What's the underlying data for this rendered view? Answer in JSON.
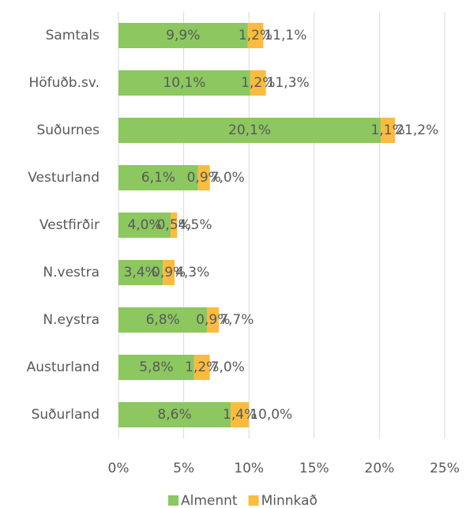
{
  "chart_data": {
    "type": "stacked-bar-horizontal",
    "categories": [
      "Samtals",
      "Höfuðb.sv.",
      "Suðurnes",
      "Vesturland",
      "Vestfirðir",
      "N.vestra",
      "N.eystra",
      "Austurland",
      "Suðurland"
    ],
    "series": [
      {
        "name": "Almennt",
        "color": "#8cc760",
        "values": [
          9.9,
          10.1,
          20.1,
          6.1,
          4.0,
          3.4,
          6.8,
          5.8,
          8.6
        ],
        "value_labels": [
          "9,9%",
          "10,1%",
          "20,1%",
          "6,1%",
          "4,0%",
          "3,4%",
          "6,8%",
          "5,8%",
          "8,6%"
        ]
      },
      {
        "name": "Minnkað",
        "color": "#fbbb3f",
        "values": [
          1.2,
          1.2,
          1.1,
          0.9,
          0.5,
          0.9,
          0.9,
          1.2,
          1.4
        ],
        "value_labels": [
          "1,2%",
          "1,2%",
          "1,1%",
          "0,9%",
          "0,5%",
          "0,9%",
          "0,9%",
          "1,2%",
          "1,4%"
        ]
      }
    ],
    "totals": {
      "values": [
        11.1,
        11.3,
        21.2,
        7.0,
        4.5,
        4.3,
        7.7,
        7.0,
        10.0
      ],
      "value_labels": [
        "11,1%",
        "11,3%",
        "21,2%",
        "7,0%",
        "4,5%",
        "4,3%",
        "7,7%",
        "7,0%",
        "10,0%"
      ]
    },
    "xlim": [
      0,
      25
    ],
    "xticks": [
      {
        "value": 0,
        "label": "0%"
      },
      {
        "value": 5,
        "label": "5%"
      },
      {
        "value": 10,
        "label": "10%"
      },
      {
        "value": 15,
        "label": "15%"
      },
      {
        "value": 20,
        "label": "20%"
      },
      {
        "value": 25,
        "label": "25%"
      }
    ],
    "grid": true,
    "legend": "bottom"
  }
}
